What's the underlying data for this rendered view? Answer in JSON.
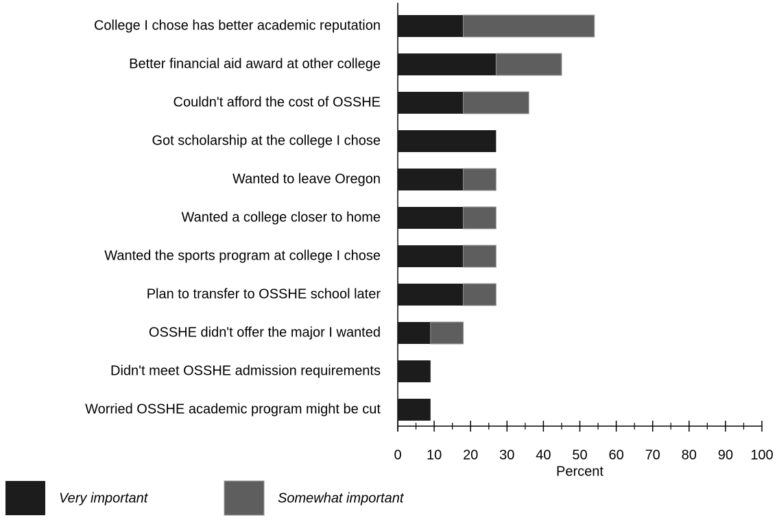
{
  "chart_data": {
    "type": "stacked_bar_horizontal",
    "categories": [
      "College I chose has better academic reputation",
      "Better financial aid award at other college",
      "Couldn't afford the cost of OSSHE",
      "Got scholarship at the college I chose",
      "Wanted to leave Oregon",
      "Wanted a college closer to home",
      "Wanted the sports program at college I chose",
      "Plan to transfer to OSSHE school later",
      "OSSHE didn't offer the major I wanted",
      "Didn't meet OSSHE admission requirements",
      "Worried OSSHE academic program might be cut"
    ],
    "series": [
      {
        "name": "Very important",
        "color": "#1c1c1c",
        "values": [
          18,
          27,
          18,
          27,
          18,
          18,
          18,
          18,
          9,
          9,
          9
        ]
      },
      {
        "name": "Somewhat important",
        "color": "#5e5e5e",
        "values": [
          36,
          18,
          18,
          0,
          9,
          9,
          9,
          9,
          9,
          0,
          0
        ]
      }
    ],
    "xlabel": "Percent",
    "xlim": [
      0,
      100
    ],
    "xticks": [
      0,
      10,
      20,
      30,
      40,
      50,
      60,
      70,
      80,
      90,
      100
    ],
    "xminorticks": [
      5,
      15,
      25,
      35,
      45,
      55,
      65,
      75,
      85,
      95
    ],
    "legend": "bottom-left"
  }
}
